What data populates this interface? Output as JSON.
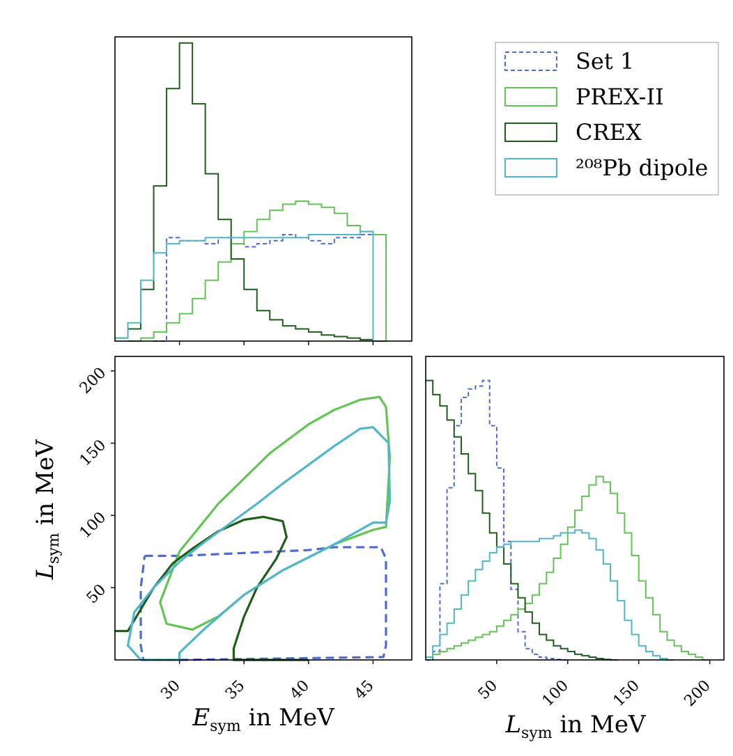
{
  "chart_data": [
    {
      "type": "histogram",
      "xlim": [
        25,
        48
      ],
      "series": [
        {
          "name": "Set 1",
          "x": [
            28,
            29,
            30,
            31,
            32,
            33,
            34,
            35,
            36,
            37,
            38,
            39,
            40,
            41,
            42,
            43,
            44,
            45
          ],
          "values": [
            0,
            0.34,
            0.33,
            0.33,
            0.32,
            0.34,
            0.32,
            0.31,
            0.32,
            0.33,
            0.35,
            0.34,
            0.33,
            0.32,
            0.34,
            0.34,
            0.35,
            0.35
          ]
        },
        {
          "name": "PREX-II",
          "x": [
            26,
            27,
            28,
            29,
            30,
            31,
            32,
            33,
            34,
            35,
            36,
            37,
            38,
            39,
            40,
            41,
            42,
            43,
            44,
            45
          ],
          "values": [
            0,
            0.01,
            0.03,
            0.06,
            0.09,
            0.14,
            0.2,
            0.26,
            0.32,
            0.36,
            0.4,
            0.43,
            0.45,
            0.46,
            0.45,
            0.44,
            0.42,
            0.38,
            0.36,
            0.35
          ]
        },
        {
          "name": "CREX",
          "x": [
            25,
            26,
            27,
            28,
            29,
            30,
            31,
            32,
            33,
            34,
            35,
            36,
            37,
            38,
            39,
            40,
            41,
            42,
            43,
            44,
            45
          ],
          "values": [
            0.01,
            0.04,
            0.17,
            0.51,
            0.83,
            0.98,
            0.78,
            0.55,
            0.4,
            0.27,
            0.17,
            0.1,
            0.07,
            0.05,
            0.04,
            0.03,
            0.02,
            0.015,
            0.01,
            0.005,
            0
          ]
        },
        {
          "name": "208Pb dipole",
          "x": [
            25,
            26,
            27,
            28,
            29,
            30,
            31,
            32,
            33,
            34,
            35,
            36,
            37,
            38,
            39,
            40,
            41,
            42,
            43,
            44,
            45
          ],
          "values": [
            0.01,
            0.06,
            0.2,
            0.29,
            0.32,
            0.33,
            0.33,
            0.34,
            0.34,
            0.34,
            0.34,
            0.34,
            0.34,
            0.34,
            0.34,
            0.35,
            0.35,
            0.35,
            0.35,
            0.36,
            0
          ]
        }
      ]
    },
    {
      "type": "contour",
      "xlabel": "E_sym in MeV",
      "ylabel": "L_sym in MeV",
      "xticks": [
        30,
        35,
        40,
        45
      ],
      "yticks": [
        50,
        100,
        150,
        200
      ],
      "xlim": [
        25,
        48
      ],
      "ylim": [
        0,
        210
      ],
      "series": [
        {
          "name": "Set 1",
          "points": [
            [
              27.3,
              72
            ],
            [
              30,
              72
            ],
            [
              35,
              74
            ],
            [
              40,
              76
            ],
            [
              42,
              78
            ],
            [
              44,
              78
            ],
            [
              45.6,
              78
            ],
            [
              46,
              70
            ],
            [
              46,
              10
            ],
            [
              45.8,
              2
            ],
            [
              30,
              0
            ],
            [
              27.2,
              0
            ],
            [
              27,
              10
            ],
            [
              27,
              50
            ],
            [
              27.3,
              72
            ]
          ]
        },
        {
          "name": "PREX-II",
          "points": [
            [
              30,
              75
            ],
            [
              33,
              108
            ],
            [
              37,
              143
            ],
            [
              40,
              163
            ],
            [
              42,
              173
            ],
            [
              44,
              180
            ],
            [
              45.5,
              182
            ],
            [
              46,
              175
            ],
            [
              46.3,
              140
            ],
            [
              46,
              92
            ],
            [
              45,
              90
            ],
            [
              42,
              80
            ],
            [
              38,
              62
            ],
            [
              35,
              45
            ],
            [
              33,
              30
            ],
            [
              31,
              21
            ],
            [
              29,
              25
            ],
            [
              28.5,
              40
            ],
            [
              30,
              75
            ]
          ]
        },
        {
          "name": "CREX",
          "points": [
            [
              25,
              20
            ],
            [
              26,
              20
            ],
            [
              27,
              35
            ],
            [
              28,
              50
            ],
            [
              29.5,
              67
            ],
            [
              31,
              77
            ],
            [
              33,
              89
            ],
            [
              35,
              97
            ],
            [
              36.5,
              99
            ],
            [
              38,
              96
            ],
            [
              38.3,
              85
            ],
            [
              37.5,
              70
            ],
            [
              36,
              50
            ],
            [
              35,
              30
            ],
            [
              34.2,
              8
            ],
            [
              34.2,
              0
            ],
            [
              34.5,
              0
            ],
            [
              38,
              0
            ],
            [
              40,
              0
            ]
          ]
        },
        {
          "name": "208Pb dipole",
          "points": [
            [
              27,
              0
            ],
            [
              26,
              10
            ],
            [
              26.5,
              33
            ],
            [
              28,
              50
            ],
            [
              30,
              68
            ],
            [
              32,
              82
            ],
            [
              34,
              95
            ],
            [
              36,
              108
            ],
            [
              38,
              122
            ],
            [
              40,
              135
            ],
            [
              42,
              148
            ],
            [
              44,
              160
            ],
            [
              45,
              161
            ],
            [
              46.2,
              150
            ],
            [
              46.3,
              110
            ],
            [
              46,
              95
            ],
            [
              45,
              95
            ],
            [
              42,
              80
            ],
            [
              38,
              62
            ],
            [
              35,
              45
            ],
            [
              32,
              22
            ],
            [
              30,
              5
            ],
            [
              30,
              0
            ],
            [
              27,
              0
            ]
          ]
        }
      ]
    },
    {
      "type": "histogram",
      "xlabel": "L_sym in MeV",
      "xticks": [
        50,
        100,
        150,
        200
      ],
      "xlim": [
        0,
        210
      ],
      "series": [
        {
          "name": "Set 1",
          "x": [
            0,
            5,
            10,
            15,
            20,
            25,
            30,
            35,
            40,
            45,
            50,
            55,
            60,
            65,
            70,
            75,
            80,
            85,
            90,
            95
          ],
          "values": [
            0,
            0.03,
            0.27,
            0.61,
            0.83,
            0.93,
            0.96,
            0.97,
            0.99,
            0.83,
            0.68,
            0.42,
            0.25,
            0.1,
            0.04,
            0.02,
            0.01,
            0.005,
            0.002,
            0
          ]
        },
        {
          "name": "PREX-II",
          "x": [
            0,
            5,
            10,
            15,
            20,
            25,
            30,
            35,
            40,
            45,
            50,
            55,
            60,
            65,
            70,
            75,
            80,
            85,
            90,
            95,
            100,
            105,
            110,
            115,
            120,
            125,
            130,
            135,
            140,
            145,
            150,
            155,
            160,
            165,
            170,
            175,
            180,
            185,
            190,
            195
          ],
          "values": [
            0.01,
            0.02,
            0.03,
            0.04,
            0.05,
            0.06,
            0.07,
            0.08,
            0.09,
            0.1,
            0.12,
            0.14,
            0.16,
            0.18,
            0.2,
            0.23,
            0.27,
            0.31,
            0.36,
            0.41,
            0.47,
            0.53,
            0.58,
            0.62,
            0.65,
            0.63,
            0.59,
            0.52,
            0.45,
            0.37,
            0.28,
            0.22,
            0.16,
            0.1,
            0.07,
            0.05,
            0.03,
            0.02,
            0.01,
            0
          ]
        },
        {
          "name": "CREX",
          "x": [
            0,
            5,
            10,
            15,
            20,
            25,
            30,
            35,
            40,
            45,
            50,
            55,
            60,
            65,
            70,
            75,
            80,
            85,
            90,
            95,
            100,
            105,
            110,
            115,
            120,
            125,
            130
          ],
          "values": [
            0.99,
            0.94,
            0.9,
            0.85,
            0.79,
            0.73,
            0.66,
            0.6,
            0.52,
            0.45,
            0.4,
            0.34,
            0.27,
            0.22,
            0.17,
            0.13,
            0.09,
            0.07,
            0.05,
            0.04,
            0.03,
            0.02,
            0.015,
            0.01,
            0.005,
            0.002,
            0
          ]
        },
        {
          "name": "208Pb dipole",
          "x": [
            0,
            5,
            10,
            15,
            20,
            25,
            30,
            35,
            40,
            45,
            50,
            55,
            60,
            65,
            70,
            75,
            80,
            85,
            90,
            95,
            100,
            105,
            110,
            115,
            120,
            125,
            130,
            135,
            140,
            145,
            150,
            155,
            160,
            165,
            170
          ],
          "values": [
            0.01,
            0.05,
            0.09,
            0.13,
            0.18,
            0.23,
            0.28,
            0.32,
            0.35,
            0.38,
            0.4,
            0.41,
            0.42,
            0.42,
            0.42,
            0.42,
            0.43,
            0.43,
            0.44,
            0.45,
            0.45,
            0.46,
            0.45,
            0.43,
            0.39,
            0.34,
            0.28,
            0.21,
            0.14,
            0.09,
            0.05,
            0.03,
            0.015,
            0.005,
            0
          ]
        }
      ]
    }
  ],
  "legend": {
    "position": "top-right",
    "items": [
      {
        "label": "Set 1",
        "color": "#4d6bd0",
        "style": "dashed"
      },
      {
        "label": "PREX-II",
        "color": "#62c452",
        "style": "solid"
      },
      {
        "label": "CREX",
        "color": "#1f5e1a",
        "style": "solid"
      },
      {
        "label": "²⁰⁸Pb dipole",
        "color": "#4fb7c8",
        "style": "solid"
      }
    ]
  }
}
